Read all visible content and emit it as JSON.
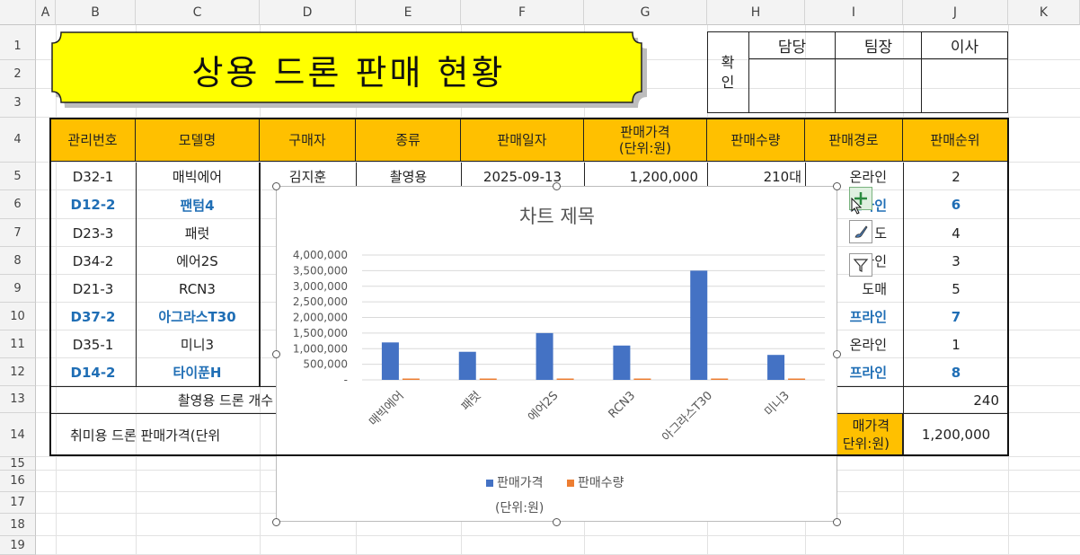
{
  "columns": [
    "A",
    "B",
    "C",
    "D",
    "E",
    "F",
    "G",
    "H",
    "I",
    "J",
    "K"
  ],
  "rows": [
    "1",
    "2",
    "3",
    "4",
    "5",
    "6",
    "7",
    "8",
    "9",
    "10",
    "11",
    "12",
    "13",
    "14",
    "15",
    "16",
    "17",
    "18",
    "19"
  ],
  "title": "상용 드론 판매 현황",
  "approval": {
    "label_1": "확",
    "label_2": "인",
    "h1": "담당",
    "h2": "팀장",
    "h3": "이사"
  },
  "headers": [
    "관리번호",
    "모델명",
    "구매자",
    "종류",
    "판매일자",
    "판매가격\n(단위:원)",
    "판매수량",
    "판매경로",
    "판매순위"
  ],
  "header_price_1": "판매가격",
  "header_price_2": "(단위:원)",
  "table_rows": [
    {
      "id": "D32-1",
      "model": "매빅에어",
      "buyer": "김지훈",
      "kind": "촬영용",
      "date": "2025-09-13",
      "price": "1,200,000",
      "qty": "210대",
      "route": "온라인",
      "rank": "2",
      "blue": false
    },
    {
      "id": "D12-2",
      "model": "팬텀4",
      "buyer": "",
      "kind": "",
      "date": "",
      "price": "",
      "qty": "",
      "route": "프라인",
      "rank": "6",
      "blue": true
    },
    {
      "id": "D23-3",
      "model": "패럿",
      "buyer": "",
      "kind": "",
      "date": "",
      "price": "",
      "qty": "",
      "route": "도",
      "rank": "4",
      "blue": false
    },
    {
      "id": "D34-2",
      "model": "에어2S",
      "buyer": "",
      "kind": "",
      "date": "",
      "price": "",
      "qty": "",
      "route": "프라인",
      "rank": "3",
      "blue": false
    },
    {
      "id": "D21-3",
      "model": "RCN3",
      "buyer": "",
      "kind": "",
      "date": "",
      "price": "",
      "qty": "",
      "route": "도매",
      "rank": "5",
      "blue": false
    },
    {
      "id": "D37-2",
      "model": "아그라스T30",
      "buyer": "",
      "kind": "",
      "date": "",
      "price": "",
      "qty": "",
      "route": "프라인",
      "rank": "7",
      "blue": true
    },
    {
      "id": "D35-1",
      "model": "미니3",
      "buyer": "",
      "kind": "",
      "date": "",
      "price": "",
      "qty": "",
      "route": "온라인",
      "rank": "1",
      "blue": false
    },
    {
      "id": "D14-2",
      "model": "타이푼H",
      "buyer": "",
      "kind": "",
      "date": "",
      "price": "",
      "qty": "",
      "route": "프라인",
      "rank": "8",
      "blue": true
    }
  ],
  "summary": {
    "row13_label": "촬영용 드론 개수",
    "row13_value": "240",
    "row14_label": "취미용 드론 판매가격(단위",
    "row14_mid_1": "매가격",
    "row14_mid_2": "단위:원)",
    "row14_value": "1,200,000"
  },
  "chart_data": {
    "type": "bar",
    "title": "차트 제목",
    "categories": [
      "매빅에어",
      "패럿",
      "에어2S",
      "RCN3",
      "아그라스T30",
      "미니3"
    ],
    "series": [
      {
        "name": "판매가격",
        "color": "#4472c4",
        "values": [
          1200000,
          900000,
          1500000,
          1100000,
          3500000,
          800000
        ]
      },
      {
        "name": "판매수량",
        "color": "#ed7d31",
        "values": [
          210,
          20,
          40,
          50,
          25,
          60
        ]
      }
    ],
    "ylim": [
      0,
      4000000
    ],
    "yticks": [
      "4,000,000",
      "3,500,000",
      "3,000,000",
      "2,500,000",
      "2,000,000",
      "1,500,000",
      "1,000,000",
      "500,000",
      "-"
    ],
    "ytick_values": [
      4000000,
      3500000,
      3000000,
      2500000,
      2000000,
      1500000,
      1000000,
      500000,
      0
    ],
    "legend_placement": "bottom",
    "legend_sub": "(단위:원)",
    "grid": true
  },
  "side_buttons": [
    "chart-elements-icon",
    "chart-styles-icon",
    "chart-filters-icon"
  ]
}
